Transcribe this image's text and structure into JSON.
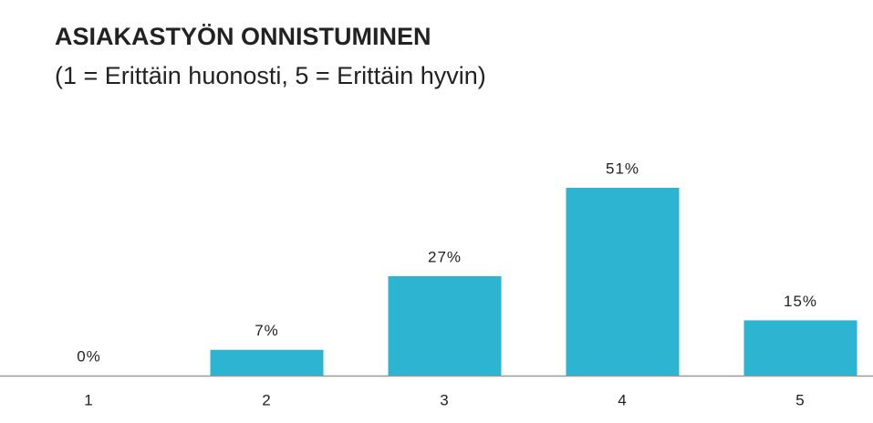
{
  "chart_data": {
    "type": "bar",
    "title": "ASIAKASTYÖN ONNISTUMINEN",
    "subtitle": "(1 = Erittäin huonosti, 5 = Erittäin hyvin)",
    "categories": [
      "1",
      "2",
      "3",
      "4",
      "5"
    ],
    "values": [
      0,
      7,
      27,
      51,
      15
    ],
    "value_labels": [
      "0%",
      "7%",
      "27%",
      "51%",
      "15%"
    ],
    "color": "#2db4d0"
  }
}
